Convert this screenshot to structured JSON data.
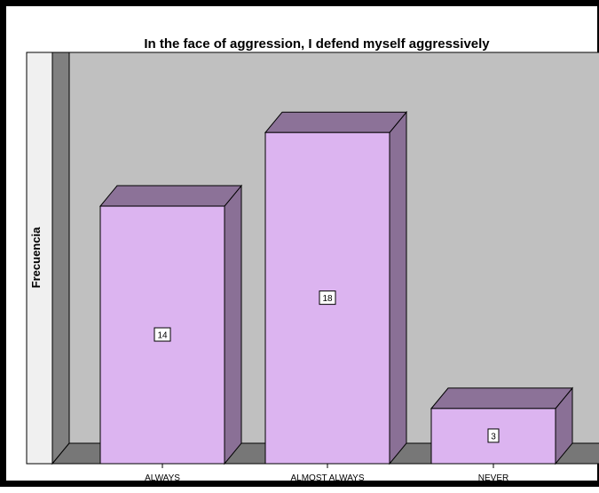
{
  "chart_data": {
    "type": "bar",
    "title": "In the face of aggression, I defend myself aggressively",
    "xlabel": "",
    "ylabel": "Frecuencia",
    "categories": [
      "ALWAYS",
      "ALMOST ALWAYS",
      "NEVER"
    ],
    "values": [
      14,
      18,
      3
    ],
    "ylim": [
      0,
      20
    ],
    "grid": false,
    "legend": "none",
    "style": "3d",
    "colors": {
      "bar_front": "#dcb4f0",
      "bar_side": "#8a7096",
      "bar_top": "#8c7298",
      "wall_back": "#c0c0c0",
      "wall_left": "#808080",
      "floor": "#777777",
      "plot_area": "#f0f0f0"
    }
  }
}
